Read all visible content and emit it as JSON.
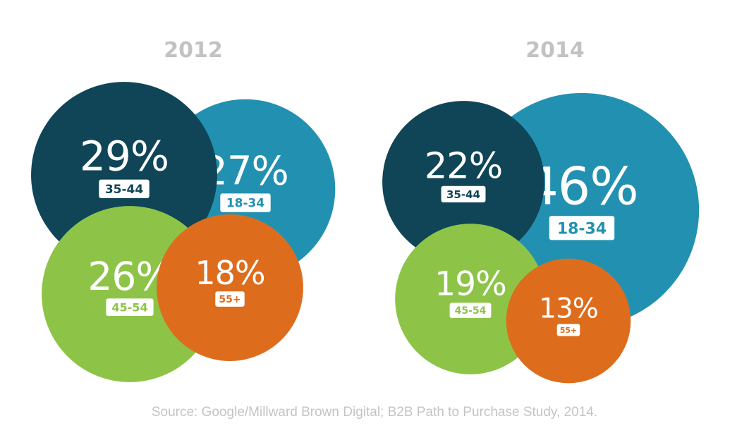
{
  "chart_data": [
    {
      "type": "bubble",
      "title": "2012",
      "bubbles": [
        {
          "category": "18-34",
          "value": 27,
          "label": "27%",
          "color": "#2291b1"
        },
        {
          "category": "35-44",
          "value": 29,
          "label": "29%",
          "color": "#0f4556"
        },
        {
          "category": "45-54",
          "value": 26,
          "label": "26%",
          "color": "#8dc448"
        },
        {
          "category": "55+",
          "value": 18,
          "label": "18%",
          "color": "#dd6d1d"
        }
      ]
    },
    {
      "type": "bubble",
      "title": "2014",
      "bubbles": [
        {
          "category": "18-34",
          "value": 46,
          "label": "46%",
          "color": "#2291b1"
        },
        {
          "category": "35-44",
          "value": 22,
          "label": "22%",
          "color": "#0f4556"
        },
        {
          "category": "45-54",
          "value": 19,
          "label": "19%",
          "color": "#8dc448"
        },
        {
          "category": "55+",
          "value": 13,
          "label": "13%",
          "color": "#dd6d1d"
        }
      ]
    }
  ],
  "source": "Source: Google/Millward Brown Digital; B2B Path to Purchase Study, 2014."
}
